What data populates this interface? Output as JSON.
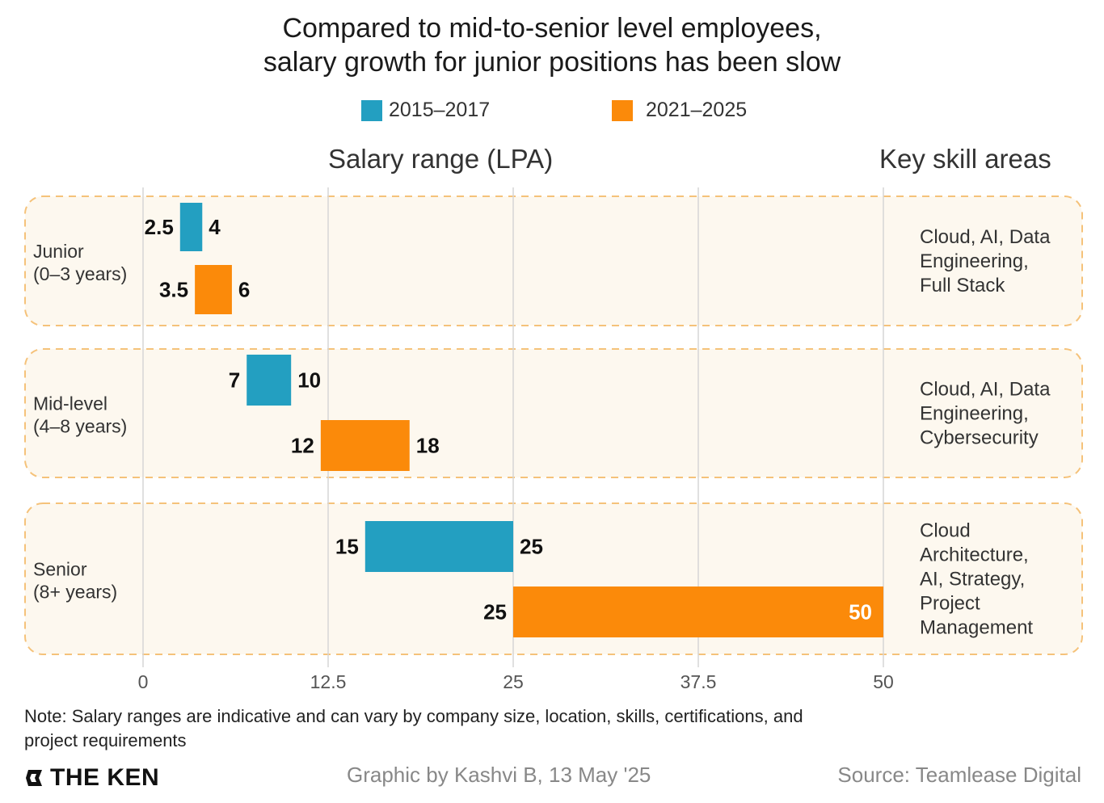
{
  "title_lines": [
    "Compared to mid-to-senior level employees,",
    "salary growth for junior positions has been slow"
  ],
  "legend": [
    {
      "label": "2015–2017",
      "color": "#239fc1"
    },
    {
      "label": "2021–2025",
      "color": "#fb8a0a"
    }
  ],
  "headers": {
    "salary": "Salary range (LPA)",
    "skills": "Key skill areas"
  },
  "chart_data": {
    "type": "bar",
    "orientation": "horizontal-range",
    "title": "Compared to mid-to-senior level employees, salary growth for junior positions has been slow",
    "xlabel": "Salary range (LPA)",
    "xlim": [
      0,
      50
    ],
    "xticks": [
      "0",
      "12.5",
      "25",
      "37.5",
      "50"
    ],
    "xtick_values": [
      0,
      12.5,
      25,
      37.5,
      50
    ],
    "grid": true,
    "legend_position": "top-center",
    "categories": [
      {
        "name": "Junior",
        "sub": "(0–3 years)",
        "skills": [
          "Cloud, AI, Data",
          "Engineering,",
          "Full Stack"
        ]
      },
      {
        "name": "Mid-level",
        "sub": "(4–8 years)",
        "skills": [
          "Cloud, AI, Data",
          "Engineering,",
          "Cybersecurity"
        ]
      },
      {
        "name": "Senior",
        "sub": "(8+ years)",
        "skills": [
          "Cloud",
          "Architecture,",
          "AI, Strategy,",
          "Project",
          "Management"
        ]
      }
    ],
    "series": [
      {
        "name": "2015–2017",
        "color": "#239fc1",
        "ranges": [
          [
            2.5,
            4
          ],
          [
            7,
            10
          ],
          [
            15,
            25
          ]
        ],
        "labels": [
          [
            "2.5",
            "4"
          ],
          [
            "7",
            "10"
          ],
          [
            "15",
            "25"
          ]
        ]
      },
      {
        "name": "2021–2025",
        "color": "#fb8a0a",
        "ranges": [
          [
            3.5,
            6
          ],
          [
            12,
            18
          ],
          [
            25,
            50
          ]
        ],
        "labels": [
          [
            "3.5",
            "6"
          ],
          [
            "12",
            "18"
          ],
          [
            "25",
            "50"
          ]
        ]
      }
    ]
  },
  "note": "Note: Salary ranges are indicative and can vary by company size, location, skills, certifications, and project requirements",
  "footer": {
    "logo": "THE KEN",
    "byline": "Graphic by Kashvi B, 13 May '25",
    "source": "Source: Teamlease Digital"
  }
}
